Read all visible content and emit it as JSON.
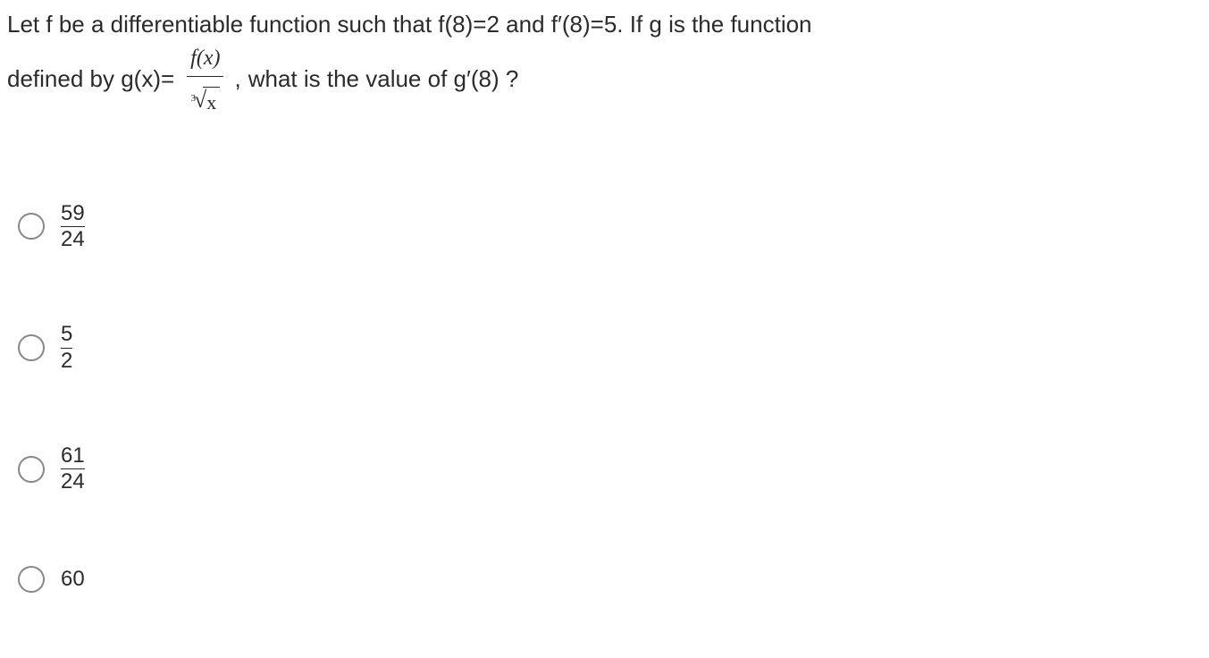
{
  "question": {
    "line1": "Let f be a differentiable function such that f(8)=2 and f′(8)=5. If g is the function",
    "line2_part1": "defined by g(x)=",
    "fraction_num": "f(x)",
    "root_index": "3",
    "root_arg": "x",
    "line2_part2": "what is the value of g′(8) ?"
  },
  "choices": [
    {
      "type": "fraction",
      "num": "59",
      "den": "24"
    },
    {
      "type": "fraction",
      "num": "5",
      "den": "2"
    },
    {
      "type": "fraction",
      "num": "61",
      "den": "24"
    },
    {
      "type": "whole",
      "value": "60"
    }
  ],
  "style": {
    "background_color": "#ffffff",
    "text_color": "#2b2b2b",
    "radio_border_color": "#888888",
    "question_fontsize": 26,
    "choice_fontsize": 24
  }
}
